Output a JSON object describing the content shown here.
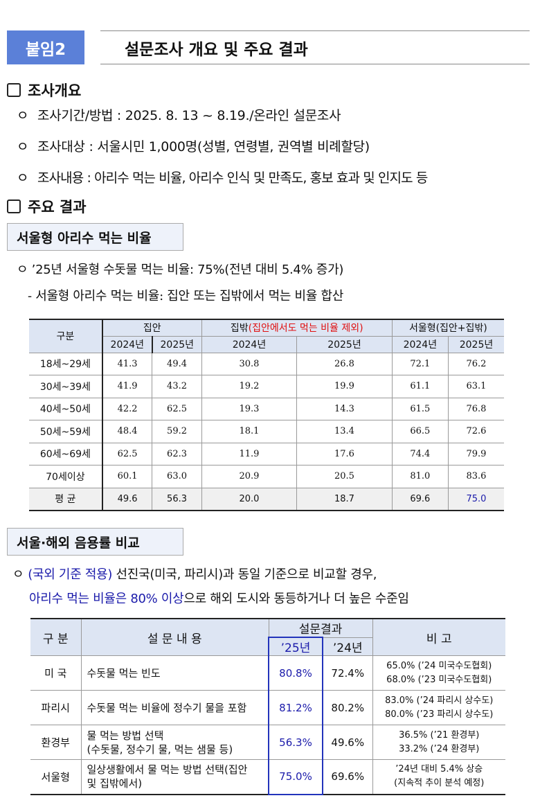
{
  "header": {
    "badge": "붙임2",
    "title": "설문조사 개요 및 주요 결과"
  },
  "overview": {
    "heading": "조사개요",
    "items": [
      {
        "bullet": "ㅇ",
        "text": "조사기간/방법 : 2025. 8. 13 ~ 8.19./온라인 설문조사"
      },
      {
        "bullet": "ㅇ",
        "text": "조사대상 : 서울시민 1,000명(성별, 연령별, 권역별 비례할당)"
      },
      {
        "bullet": "ㅇ",
        "text": "조사내용 : 아리수 먹는 비율, 아리수 인식 및 만족도, 홍보 효과 및 인지도 등"
      }
    ]
  },
  "results": {
    "heading": "주요 결과",
    "section1": {
      "label": "서울형 아리수 먹는 비율",
      "line1": "ㅇ ’25년 서울형 수돗물 먹는 비율: 75%(전년 대비 5.4% 증가)",
      "line2": "- 서울형 아리수 먹는 비율: 집안 또는 집밖에서 먹는 비율 합산"
    },
    "table1": {
      "corner": "구분",
      "groups": [
        "집안",
        "집밖",
        "(집안에서도 먹는 비율 제외)",
        "서울형(집안+집밖)"
      ],
      "years": [
        "2024년",
        "2025년",
        "2024년",
        "2025년",
        "2024년",
        "2025년"
      ],
      "rows": [
        {
          "label": "18세~29세",
          "values": [
            "41.3",
            "49.4",
            "30.8",
            "26.8",
            "72.1",
            "76.2"
          ]
        },
        {
          "label": "30세~39세",
          "values": [
            "41.9",
            "43.2",
            "19.2",
            "19.9",
            "61.1",
            "63.1"
          ]
        },
        {
          "label": "40세~50세",
          "values": [
            "42.2",
            "62.5",
            "19.3",
            "14.3",
            "61.5",
            "76.8"
          ]
        },
        {
          "label": "50세~59세",
          "values": [
            "48.4",
            "59.2",
            "18.1",
            "13.4",
            "66.5",
            "72.6"
          ]
        },
        {
          "label": "60세~69세",
          "values": [
            "62.5",
            "62.3",
            "11.9",
            "17.6",
            "74.4",
            "79.9"
          ]
        },
        {
          "label": "70세이상",
          "values": [
            "60.1",
            "63.0",
            "20.9",
            "20.5",
            "81.0",
            "83.6"
          ]
        },
        {
          "label": "평 균",
          "values": [
            "49.6",
            "56.3",
            "20.0",
            "18.7",
            "69.6",
            "75.0"
          ]
        }
      ]
    },
    "section2": {
      "label": "서울·해외 음용률 비교",
      "bullet": "ㅇ",
      "line1_blue": "(국외 기준 적용)",
      "line1_rest": " 선진국(미국, 파리시)과 동일 기준으로 비교할 경우,",
      "line2_blue": "아리수 먹는 비율은 80% 이상",
      "line2_rest": "으로 해외 도시와 동등하거나 더 높은 수준임"
    },
    "table2": {
      "headers": {
        "category": "구 분",
        "content": "설 문 내 용",
        "result": "설문결과",
        "y25": "’25년",
        "y24": "’24년",
        "note": "비 고"
      },
      "rows": [
        {
          "category": "미 국",
          "content": [
            "수돗물 먹는 빈도"
          ],
          "y25": "80.8%",
          "y24": "72.4%",
          "note": [
            "65.0% (’24 미국수도협회)",
            "68.0% (’23 미국수도협회)"
          ]
        },
        {
          "category": "파리시",
          "content": [
            "수돗물 먹는 비율에 정수기 물을 포함"
          ],
          "y25": "81.2%",
          "y24": "80.2%",
          "note": [
            "83.0% (’24 파리시 상수도)",
            "80.0% (’23 파리시 상수도)"
          ]
        },
        {
          "category": "환경부",
          "content": [
            "물 먹는 방법 선택",
            "(수돗물, 정수기 물, 먹는 샘물 등)"
          ],
          "y25": "56.3%",
          "y24": "49.6%",
          "note": [
            "36.5% (’21 환경부)",
            "33.2% (’24 환경부)"
          ]
        },
        {
          "category": "서울형",
          "content": [
            "일상생활에서 물 먹는 방법 선택(집안",
            "및 집밖에서)"
          ],
          "y25": "75.0%",
          "y24": "69.6%",
          "note": [
            "’24년 대비 5.4% 상승",
            "(지속적 추이 분석 예정)"
          ]
        }
      ]
    }
  },
  "colors": {
    "badge": "#5b80d8",
    "highlight_blue": "#1a1aaa",
    "red_note": "#e01010",
    "table_header": "#dde5f3"
  }
}
